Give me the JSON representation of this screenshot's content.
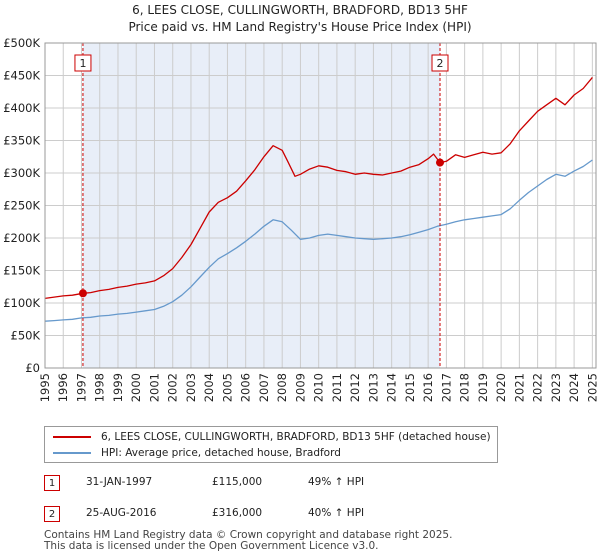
{
  "title_line1": "6, LEES CLOSE, CULLINGWORTH, BRADFORD, BD13 5HF",
  "title_line2": "Price paid vs. HM Land Registry's House Price Index (HPI)",
  "chart_data": {
    "type": "line",
    "title": "6, LEES CLOSE, CULLINGWORTH, BRADFORD, BD13 5HF — Price paid vs. HM Land Registry's House Price Index (HPI)",
    "xlabel": "",
    "ylabel": "",
    "xlim": [
      1995,
      2025.2
    ],
    "ylim": [
      0,
      500000
    ],
    "y_ticks": [
      0,
      50000,
      100000,
      150000,
      200000,
      250000,
      300000,
      350000,
      400000,
      450000,
      500000
    ],
    "y_tick_labels": [
      "£0",
      "£50K",
      "£100K",
      "£150K",
      "£200K",
      "£250K",
      "£300K",
      "£350K",
      "£400K",
      "£450K",
      "£500K"
    ],
    "x_ticks": [
      "1995",
      "1996",
      "1997",
      "1998",
      "1999",
      "2000",
      "2001",
      "2002",
      "2003",
      "2004",
      "2005",
      "2006",
      "2007",
      "2008",
      "2009",
      "2010",
      "2011",
      "2012",
      "2013",
      "2014",
      "2015",
      "2016",
      "2017",
      "2018",
      "2019",
      "2020",
      "2021",
      "2022",
      "2023",
      "2024",
      "2025"
    ],
    "grid": true,
    "series": [
      {
        "name": "6, LEES CLOSE, CULLINGWORTH, BRADFORD, BD13 5HF (detached house)",
        "color": "#cc0000",
        "x": [
          1995,
          1995.5,
          1996,
          1996.5,
          1997.08,
          1997.5,
          1998,
          1998.5,
          1999,
          1999.5,
          2000,
          2000.5,
          2001,
          2001.5,
          2002,
          2002.5,
          2003,
          2003.5,
          2004,
          2004.5,
          2005,
          2005.5,
          2006,
          2006.5,
          2007,
          2007.5,
          2008,
          2008.3,
          2008.7,
          2009,
          2009.5,
          2010,
          2010.5,
          2011,
          2011.5,
          2012,
          2012.5,
          2013,
          2013.5,
          2014,
          2014.5,
          2015,
          2015.5,
          2016,
          2016.3,
          2016.65,
          2017,
          2017.5,
          2018,
          2018.5,
          2019,
          2019.5,
          2020,
          2020.5,
          2021,
          2021.5,
          2022,
          2022.5,
          2023,
          2023.5,
          2024,
          2024.5,
          2025
        ],
        "values": [
          107000,
          109000,
          111000,
          112000,
          115000,
          116000,
          119000,
          121000,
          124000,
          126000,
          129000,
          131000,
          134000,
          142000,
          153000,
          170000,
          190000,
          215000,
          240000,
          255000,
          262000,
          272000,
          288000,
          305000,
          325000,
          342000,
          335000,
          318000,
          295000,
          298000,
          306000,
          311000,
          309000,
          304000,
          302000,
          298000,
          300000,
          298000,
          297000,
          300000,
          303000,
          309000,
          313000,
          322000,
          329000,
          316000,
          318000,
          328000,
          324000,
          328000,
          332000,
          329000,
          331000,
          345000,
          365000,
          380000,
          395000,
          405000,
          415000,
          405000,
          420000,
          430000,
          447000
        ]
      },
      {
        "name": "HPI: Average price, detached house, Bradford",
        "color": "#6699cc",
        "x": [
          1995,
          1995.5,
          1996,
          1996.5,
          1997,
          1997.5,
          1998,
          1998.5,
          1999,
          1999.5,
          2000,
          2000.5,
          2001,
          2001.5,
          2002,
          2002.5,
          2003,
          2003.5,
          2004,
          2004.5,
          2005,
          2005.5,
          2006,
          2006.5,
          2007,
          2007.5,
          2008,
          2008.5,
          2009,
          2009.5,
          2010,
          2010.5,
          2011,
          2011.5,
          2012,
          2012.5,
          2013,
          2013.5,
          2014,
          2014.5,
          2015,
          2015.5,
          2016,
          2016.5,
          2017,
          2017.5,
          2018,
          2018.5,
          2019,
          2019.5,
          2020,
          2020.5,
          2021,
          2021.5,
          2022,
          2022.5,
          2023,
          2023.5,
          2024,
          2024.5,
          2025
        ],
        "values": [
          72000,
          73000,
          74000,
          75000,
          77000,
          78000,
          80000,
          81000,
          83000,
          84000,
          86000,
          88000,
          90000,
          95000,
          102000,
          112000,
          125000,
          140000,
          155000,
          168000,
          176000,
          185000,
          195000,
          206000,
          218000,
          228000,
          225000,
          212000,
          198000,
          200000,
          204000,
          206000,
          204000,
          202000,
          200000,
          199000,
          198000,
          199000,
          200000,
          202000,
          205000,
          209000,
          213000,
          218000,
          221000,
          225000,
          228000,
          230000,
          232000,
          234000,
          236000,
          245000,
          258000,
          270000,
          280000,
          290000,
          298000,
          295000,
          303000,
          310000,
          320000
        ]
      }
    ],
    "annotations": [
      {
        "label": "1",
        "x": 1997.08,
        "y": 115000
      },
      {
        "label": "2",
        "x": 2016.65,
        "y": 316000
      }
    ]
  },
  "legend": {
    "property_label": "6, LEES CLOSE, CULLINGWORTH, BRADFORD, BD13 5HF (detached house)",
    "hpi_label": "HPI: Average price, detached house, Bradford"
  },
  "transactions": [
    {
      "num": "1",
      "date": "31-JAN-1997",
      "price": "£115,000",
      "hpi": "49% ↑ HPI"
    },
    {
      "num": "2",
      "date": "25-AUG-2016",
      "price": "£316,000",
      "hpi": "40% ↑ HPI"
    }
  ],
  "footer_line1": "Contains HM Land Registry data © Crown copyright and database right 2025.",
  "footer_line2": "This data is licensed under the Open Government Licence v3.0.",
  "colors": {
    "property": "#cc0000",
    "hpi": "#6699cc",
    "shade": "#e8eef8",
    "grid": "#cccccc"
  }
}
